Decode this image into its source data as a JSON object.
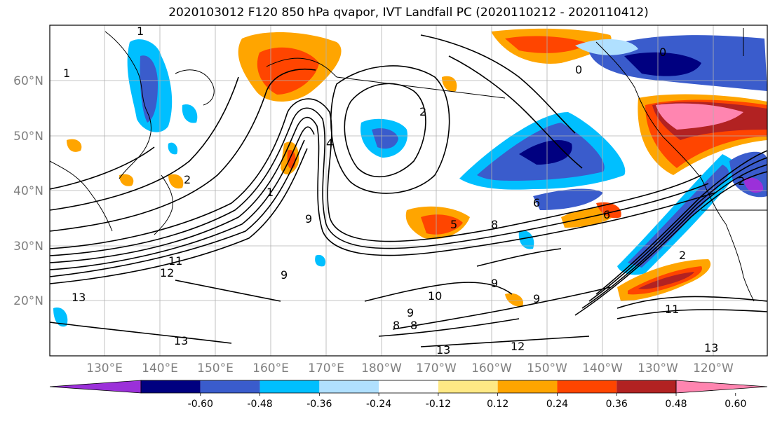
{
  "title": "2020103012 F120 850 hPa qvapor, IVT Landfall PC (2020110212 - 2020110412)",
  "lat_labels": [
    "60°N",
    "50°N",
    "40°N",
    "30°N",
    "20°N"
  ],
  "lon_labels": [
    "130°E",
    "140°E",
    "150°E",
    "160°E",
    "170°E",
    "180°W",
    "170°W",
    "160°W",
    "150°W",
    "140°W",
    "130°W",
    "120°W"
  ],
  "colorbar": {
    "colors": [
      "#9b30d9",
      "#000080",
      "#3a5ccc",
      "#00bfff",
      "#b0e0ff",
      "#ffffff",
      "#ffe985",
      "#ffa500",
      "#ff4500",
      "#b22222",
      "#ff85b0"
    ],
    "tick_labels": [
      "-0.60",
      "-0.48",
      "-0.36",
      "-0.24",
      "-0.12",
      "0.12",
      "0.24",
      "0.36",
      "0.48",
      "0.60"
    ]
  },
  "contour_labels": [
    "1",
    "1",
    "0",
    "0",
    "2",
    "2",
    "4",
    "6",
    "1",
    "2",
    "9",
    "5",
    "6",
    "8",
    "12",
    "11",
    "13",
    "13",
    "13",
    "12",
    "9",
    "10",
    "9",
    "9",
    "8",
    "8",
    "2",
    "11",
    "13",
    "9"
  ]
}
